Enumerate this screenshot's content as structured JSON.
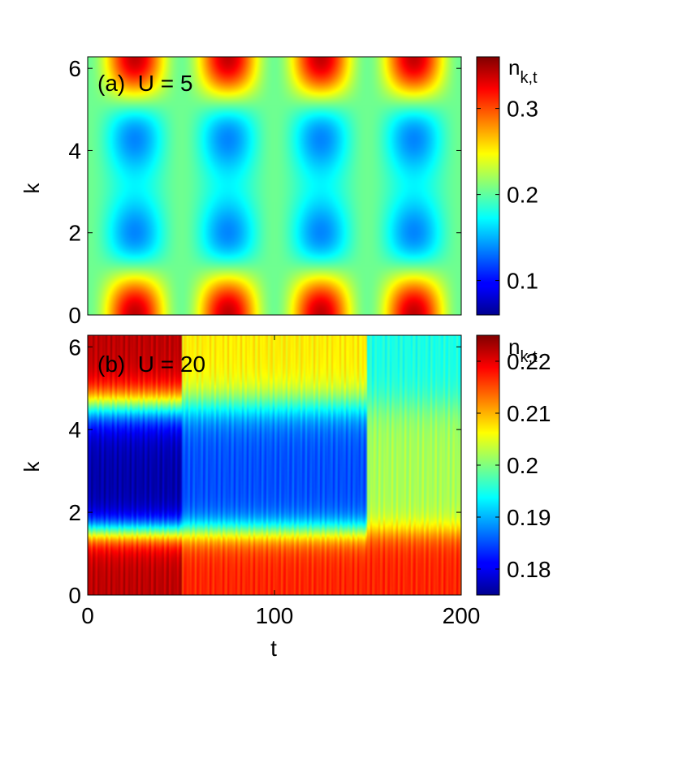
{
  "chart_data": [
    {
      "type": "heatmap",
      "panel_label": "(a)  U = 5",
      "xlabel": "",
      "ylabel": "k",
      "xlim": [
        0,
        200
      ],
      "ylim": [
        0,
        6.28
      ],
      "yticks": [
        "0",
        "2",
        "4",
        "6"
      ],
      "colorbar": {
        "label": "n",
        "label_sub": "k,t",
        "range": [
          0.06,
          0.36
        ],
        "ticks": [
          "0.1",
          "0.2",
          "0.3"
        ]
      },
      "period_t": 50,
      "pattern": "high density near k=0 and k=2π (max at t≈25,75,125,175), low density near k=π (min at t≈25,75,125,175); nearly uniform ~0.2 at t≈0,50,100,150,200"
    },
    {
      "type": "heatmap",
      "panel_label": "(b)  U = 20",
      "xlabel": "t",
      "ylabel": "k",
      "xlim": [
        0,
        200
      ],
      "ylim": [
        0,
        6.28
      ],
      "xticks": [
        "0",
        "100",
        "200"
      ],
      "yticks": [
        "0",
        "2",
        "4",
        "6"
      ],
      "colorbar": {
        "label": "n",
        "label_sub": "k,t",
        "range": [
          0.175,
          0.225
        ],
        "ticks": [
          "0.18",
          "0.19",
          "0.2",
          "0.21",
          "0.22"
        ]
      },
      "segments": [
        {
          "t": [
            0,
            50
          ],
          "low_k_value": 0.222,
          "high_k_value": 0.222,
          "mid_k_value": 0.177
        },
        {
          "t": [
            50,
            150
          ],
          "low_k_value": 0.217,
          "high_k_value": 0.207,
          "mid_k_value": 0.185
        },
        {
          "t": [
            150,
            200
          ],
          "low_k_value": 0.217,
          "high_k_value": 0.195,
          "mid_k_value": 0.202
        }
      ]
    }
  ]
}
